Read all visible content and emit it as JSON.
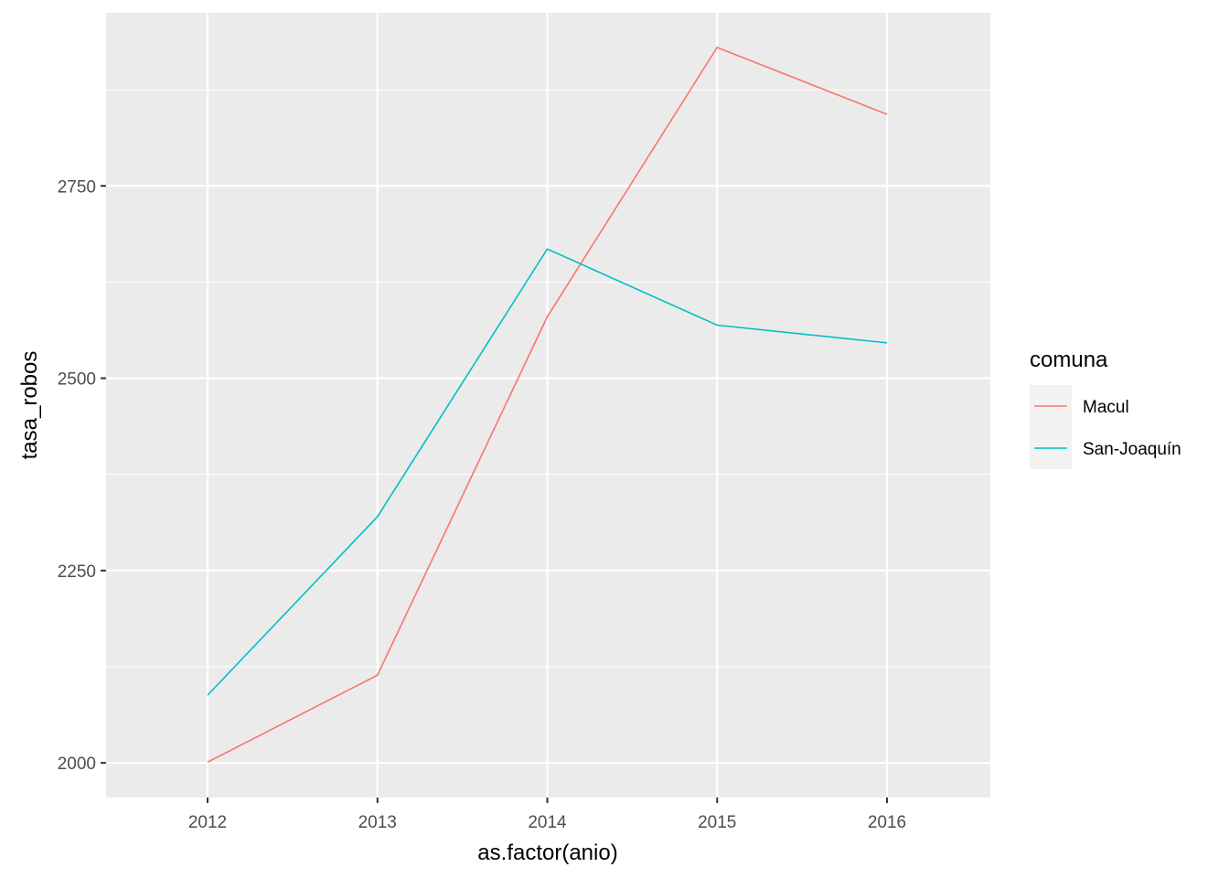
{
  "chart_data": {
    "type": "line",
    "categories": [
      "2012",
      "2013",
      "2014",
      "2015",
      "2016"
    ],
    "series": [
      {
        "name": "Macul",
        "color": "#F8766D",
        "values": [
          2001,
          2114,
          2580,
          2930,
          2843
        ]
      },
      {
        "name": "San-Joaquín",
        "color": "#00BFC4",
        "values": [
          2088,
          2320,
          2668,
          2569,
          2546
        ]
      }
    ],
    "xlabel": "as.factor(anio)",
    "ylabel": "tasa_robos",
    "ylim": [
      1955,
      2975
    ],
    "yticks": [
      2000,
      2250,
      2500,
      2750
    ],
    "grid": true,
    "legend": {
      "title": "comuna",
      "position": "right"
    }
  }
}
